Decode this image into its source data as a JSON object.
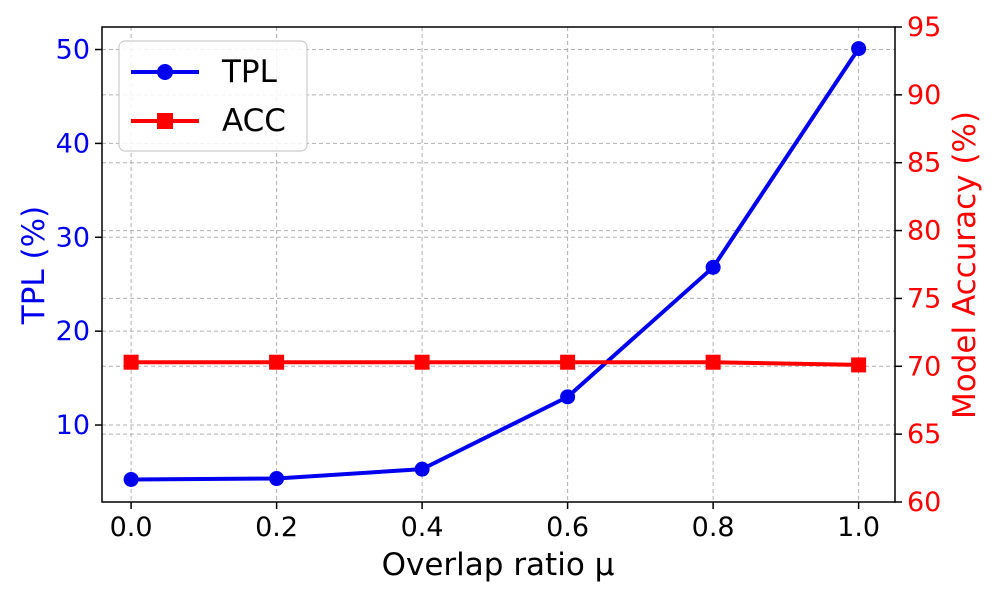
{
  "chart_data": {
    "type": "line",
    "x": [
      0.0,
      0.2,
      0.4,
      0.6,
      0.8,
      1.0
    ],
    "x_tick_labels": [
      "0.0",
      "0.2",
      "0.4",
      "0.6",
      "0.8",
      "1.0"
    ],
    "xlim": [
      -0.04,
      1.05
    ],
    "xlabel": "Overlap ratio μ",
    "y_left": {
      "label": "TPL (%)",
      "color": "#0000ee",
      "lim": [
        1.8,
        52.4
      ],
      "ticks": [
        10,
        20,
        30,
        40,
        50
      ],
      "tick_labels": [
        "10",
        "20",
        "30",
        "40",
        "50"
      ]
    },
    "y_right": {
      "label": "Model Accuracy (%)",
      "color": "#ff0000",
      "lim": [
        60,
        95
      ],
      "ticks": [
        60,
        65,
        70,
        75,
        80,
        85,
        90,
        95
      ],
      "tick_labels": [
        "60",
        "65",
        "70",
        "75",
        "80",
        "85",
        "90",
        "95"
      ]
    },
    "series": [
      {
        "name": "TPL",
        "axis": "left",
        "color": "#0000ee",
        "marker": "circle",
        "values": [
          4.2,
          4.3,
          5.3,
          13.0,
          26.8,
          50.1
        ]
      },
      {
        "name": "ACC",
        "axis": "right",
        "color": "#ff0000",
        "marker": "square",
        "values": [
          70.3,
          70.3,
          70.3,
          70.3,
          70.3,
          70.1
        ]
      }
    ],
    "grid": true,
    "legend_position": "top-left"
  }
}
